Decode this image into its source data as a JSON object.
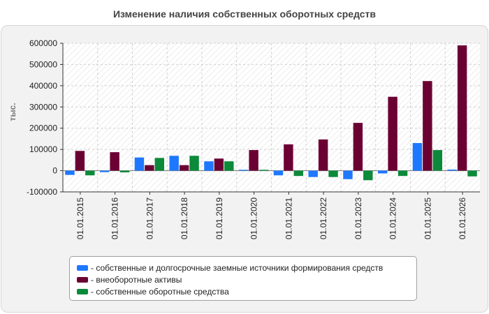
{
  "chart_data": {
    "type": "bar",
    "title": "Изменение наличия собственных оборотных средств",
    "ylabel": "тыс.",
    "ylim": [
      -100000,
      600000
    ],
    "yticks": [
      -100000,
      0,
      100000,
      200000,
      300000,
      400000,
      500000,
      600000
    ],
    "grid": true,
    "legend_position": "bottom",
    "categories": [
      "01.01.2015",
      "01.01.2016",
      "01.01.2017",
      "01.01.2018",
      "01.01.2019",
      "01.01.2020",
      "01.01.2021",
      "01.01.2022",
      "01.01.2023",
      "01.01.2024",
      "01.01.2025",
      "01.01.2026"
    ],
    "series": [
      {
        "name": "собственные и долгосрочные заемные источники формирования средств",
        "color": "#1e78ff",
        "values": [
          -20000,
          -7000,
          62000,
          70000,
          44000,
          4000,
          -22000,
          -30000,
          -40000,
          -13000,
          130000,
          5000
        ]
      },
      {
        "name": "внеоборотные активы",
        "color": "#6b0033",
        "values": [
          93000,
          87000,
          26000,
          26000,
          57000,
          97000,
          124000,
          147000,
          225000,
          348000,
          422000,
          590000
        ]
      },
      {
        "name": "собственные оборотные средства",
        "color": "#0b8a3a",
        "values": [
          -22000,
          -8000,
          60000,
          70000,
          44000,
          4000,
          -25000,
          -30000,
          -45000,
          -25000,
          97000,
          -27000
        ]
      }
    ]
  }
}
